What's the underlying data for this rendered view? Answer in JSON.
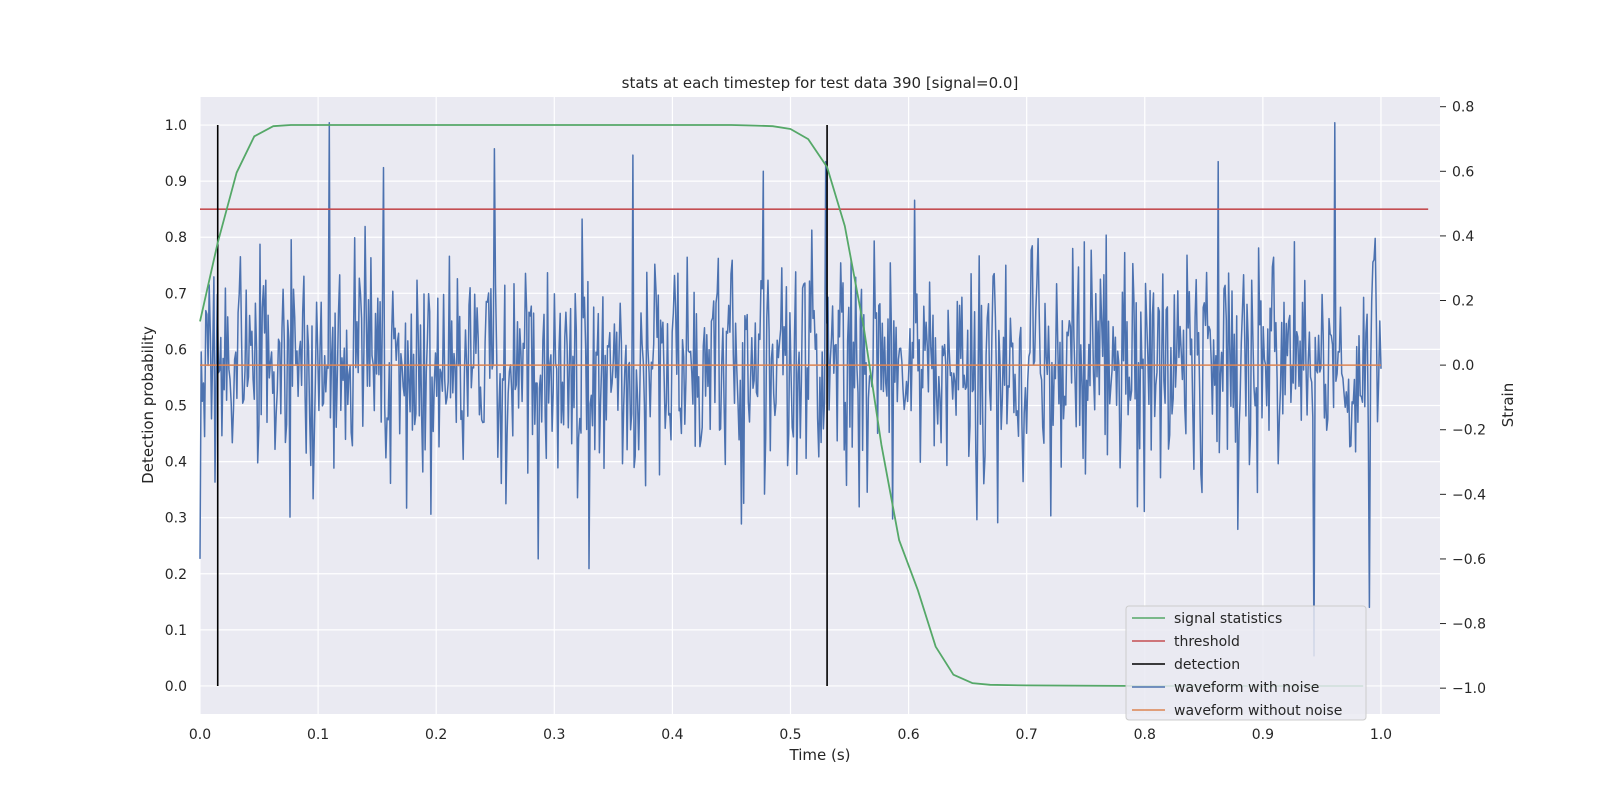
{
  "chart_data": {
    "type": "line",
    "title": "stats at each timestep for test data 390 [signal=0.0]",
    "xlabel": "Time (s)",
    "ylabel": "Detection probability",
    "ylabel_right": "Strain",
    "xlim": [
      0.0,
      1.05
    ],
    "ylim": [
      -0.05,
      1.05
    ],
    "ylim_right": [
      -1.08,
      0.83
    ],
    "xticks": [
      "0.0",
      "0.1",
      "0.2",
      "0.3",
      "0.4",
      "0.5",
      "0.6",
      "0.7",
      "0.8",
      "0.9",
      "1.0"
    ],
    "yticks": [
      "0.0",
      "0.1",
      "0.2",
      "0.3",
      "0.4",
      "0.5",
      "0.6",
      "0.7",
      "0.8",
      "0.9",
      "1.0"
    ],
    "yticks_right": [
      "−1.0",
      "−0.8",
      "−0.6",
      "−0.4",
      "−0.2",
      "0.0",
      "0.2",
      "0.4",
      "0.6",
      "0.8"
    ],
    "grid": true,
    "legend_position": "lower-right",
    "colors": {
      "plot_bg": "#eaeaf2",
      "grid": "#ffffff",
      "signal_statistics": "#55a868",
      "threshold": "#c44e52",
      "detection": "#000000",
      "waveform_with_noise": "#4c72b0",
      "waveform_without_noise": "#dd8452"
    },
    "series": [
      {
        "name": "signal statistics",
        "axis": "left",
        "x": [
          0.0,
          0.015,
          0.031,
          0.046,
          0.062,
          0.077,
          0.092,
          0.108,
          0.2,
          0.3,
          0.4,
          0.45,
          0.47,
          0.485,
          0.5,
          0.515,
          0.531,
          0.546,
          0.562,
          0.577,
          0.592,
          0.608,
          0.623,
          0.638,
          0.654,
          0.669,
          0.7,
          0.8,
          0.9,
          0.985
        ],
        "y": [
          0.65,
          0.79,
          0.915,
          0.98,
          0.998,
          1.0,
          1.0,
          1.0,
          1.0,
          1.0,
          1.0,
          1.0,
          0.999,
          0.998,
          0.993,
          0.975,
          0.925,
          0.82,
          0.64,
          0.43,
          0.26,
          0.17,
          0.07,
          0.02,
          0.005,
          0.002,
          0.001,
          0.0,
          0.0,
          0.0
        ]
      },
      {
        "name": "threshold",
        "axis": "left",
        "x": [
          0.0,
          1.04
        ],
        "y": [
          0.85,
          0.85
        ]
      },
      {
        "name": "detection",
        "axis": "left",
        "segments": [
          {
            "x": 0.015,
            "y": [
              0.0,
              1.0
            ]
          },
          {
            "x": 0.531,
            "y": [
              0.0,
              1.0
            ]
          }
        ]
      },
      {
        "name": "waveform with noise",
        "axis": "right",
        "x_range": [
          0.0,
          1.0
        ],
        "n_points": 1024,
        "std": 0.18,
        "peaks": [
          {
            "x": 0.0,
            "y": -0.6
          },
          {
            "x": 0.109,
            "y": 0.75
          },
          {
            "x": 0.249,
            "y": 0.67
          },
          {
            "x": 0.286,
            "y": -0.6
          },
          {
            "x": 0.329,
            "y": -0.63
          },
          {
            "x": 0.367,
            "y": 0.65
          },
          {
            "x": 0.477,
            "y": 0.6
          },
          {
            "x": 0.53,
            "y": 0.63
          },
          {
            "x": 0.862,
            "y": 0.63
          },
          {
            "x": 0.943,
            "y": -0.9
          },
          {
            "x": 0.961,
            "y": 0.75
          },
          {
            "x": 0.99,
            "y": -0.75
          }
        ]
      },
      {
        "name": "waveform without noise",
        "axis": "right",
        "x": [
          0.0,
          1.0
        ],
        "y": [
          0.0,
          0.0
        ]
      }
    ]
  }
}
